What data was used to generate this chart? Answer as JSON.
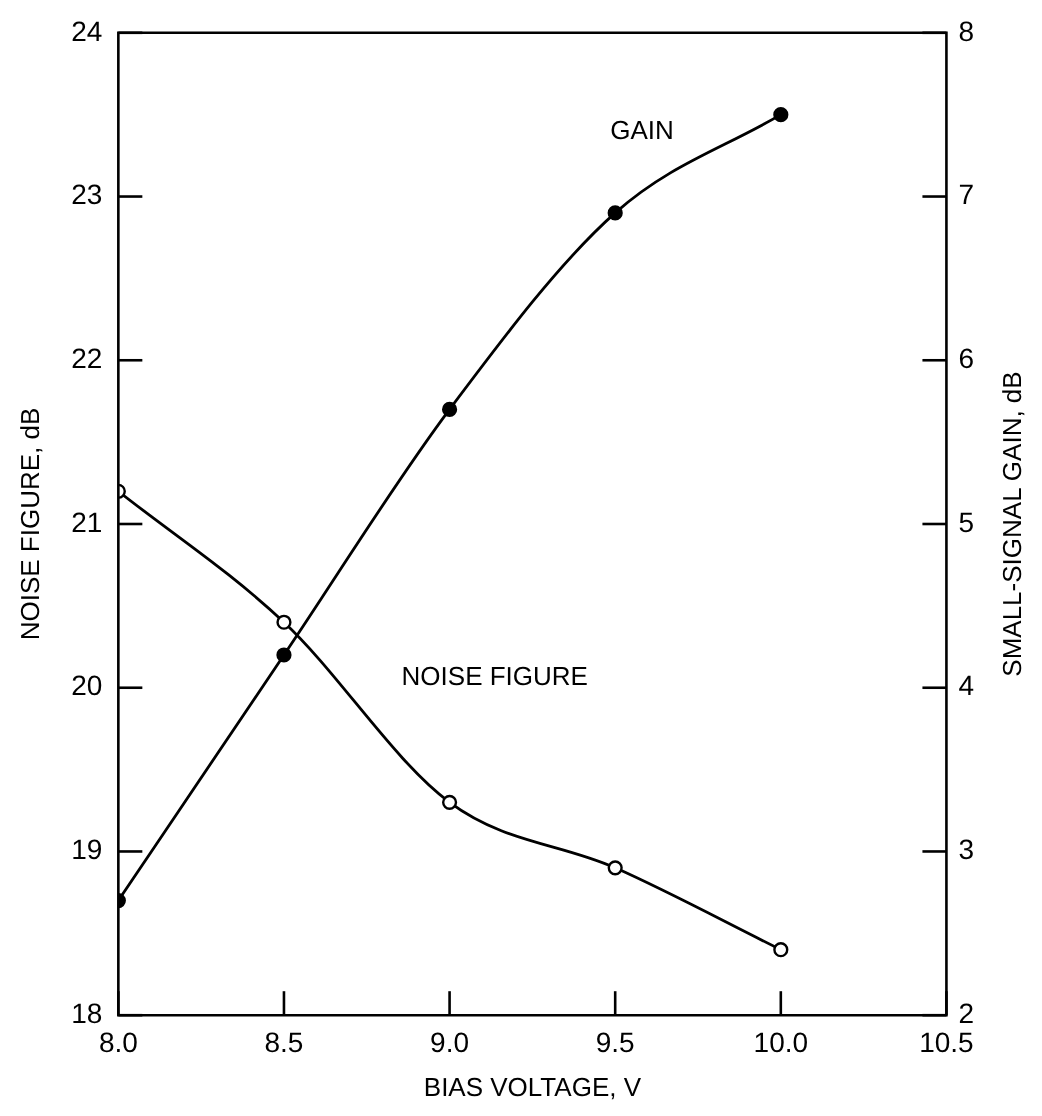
{
  "chart_data": {
    "type": "line",
    "xlabel": "BIAS VOLTAGE, V",
    "ylabel": "NOISE FIGURE, dB",
    "y2label": "SMALL-SIGNAL GAIN, dB",
    "x": [
      8.0,
      8.5,
      9.0,
      9.5,
      10.0
    ],
    "xlim": [
      8.0,
      10.5
    ],
    "xticks": [
      {
        "value": 8.0,
        "label": "8.0"
      },
      8.5,
      {
        "value": 9.0,
        "label": "9.0"
      },
      9.5,
      {
        "value": 10.0,
        "label": "10.0"
      },
      10.5
    ],
    "ylim": [
      18,
      24
    ],
    "yticks": [
      18,
      19,
      20,
      21,
      22,
      23,
      24
    ],
    "y2lim": [
      2,
      8
    ],
    "y2ticks": [
      2,
      3,
      4,
      5,
      6,
      7,
      8
    ],
    "series": [
      {
        "name": "NOISE FIGURE",
        "color": "#000000",
        "values": [
          21.2,
          20.4,
          19.3,
          18.9,
          18.4
        ]
      },
      {
        "name": "GAIN",
        "color": "#000000",
        "axis": "y2",
        "values": [
          2.7,
          4.2,
          5.7,
          6.9,
          7.5
        ]
      }
    ],
    "marker": "circle",
    "grid": false,
    "legend": false
  }
}
